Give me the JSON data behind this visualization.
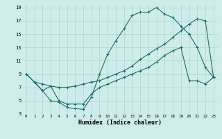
{
  "xlabel": "Humidex (Indice chaleur)",
  "bg_color": "#ceecea",
  "grid_color": "#aed4d0",
  "line_color": "#1a6e65",
  "xlim": [
    -0.5,
    23.5
  ],
  "ylim": [
    3,
    19.5
  ],
  "xticks": [
    0,
    1,
    2,
    3,
    4,
    5,
    6,
    7,
    8,
    9,
    10,
    11,
    12,
    13,
    14,
    15,
    16,
    17,
    18,
    19,
    20,
    21,
    22,
    23
  ],
  "yticks": [
    3,
    5,
    7,
    9,
    11,
    13,
    15,
    17,
    19
  ],
  "curve1_x": [
    0,
    1,
    2,
    3,
    4,
    5,
    6,
    7,
    8,
    9,
    10,
    11,
    12,
    13,
    14,
    15,
    16,
    17,
    18,
    19,
    20,
    21,
    22,
    23
  ],
  "curve1_y": [
    9,
    7.8,
    6.5,
    5,
    4.8,
    4.0,
    3.8,
    3.7,
    5.5,
    9.0,
    12,
    14,
    15.8,
    17.8,
    18.3,
    18.3,
    19.0,
    18.0,
    17.5,
    16.2,
    15.0,
    13.0,
    10.0,
    8.5
  ],
  "curve2_x": [
    1,
    2,
    3,
    4,
    5,
    6,
    7,
    8,
    9,
    10,
    11,
    12,
    13,
    14,
    15,
    16,
    17,
    18,
    19,
    20,
    21,
    22,
    23
  ],
  "curve2_y": [
    7.8,
    7.5,
    7.2,
    7.0,
    7.0,
    7.2,
    7.5,
    7.8,
    8.0,
    8.5,
    9.0,
    9.5,
    10.2,
    11.2,
    12.0,
    12.8,
    13.5,
    14.5,
    15.5,
    16.5,
    17.3,
    17.0,
    8.5
  ],
  "curve3_x": [
    0,
    1,
    2,
    3,
    4,
    5,
    6,
    7,
    8,
    9,
    10,
    11,
    12,
    13,
    14,
    15,
    16,
    17,
    18,
    19,
    20,
    21,
    22,
    23
  ],
  "curve3_y": [
    9.0,
    7.8,
    6.5,
    7.2,
    5.0,
    4.5,
    4.5,
    4.5,
    6.0,
    7.0,
    7.5,
    8.0,
    8.5,
    9.0,
    9.5,
    10.0,
    10.8,
    11.8,
    12.5,
    13.0,
    8.0,
    8.0,
    7.5,
    8.5
  ]
}
